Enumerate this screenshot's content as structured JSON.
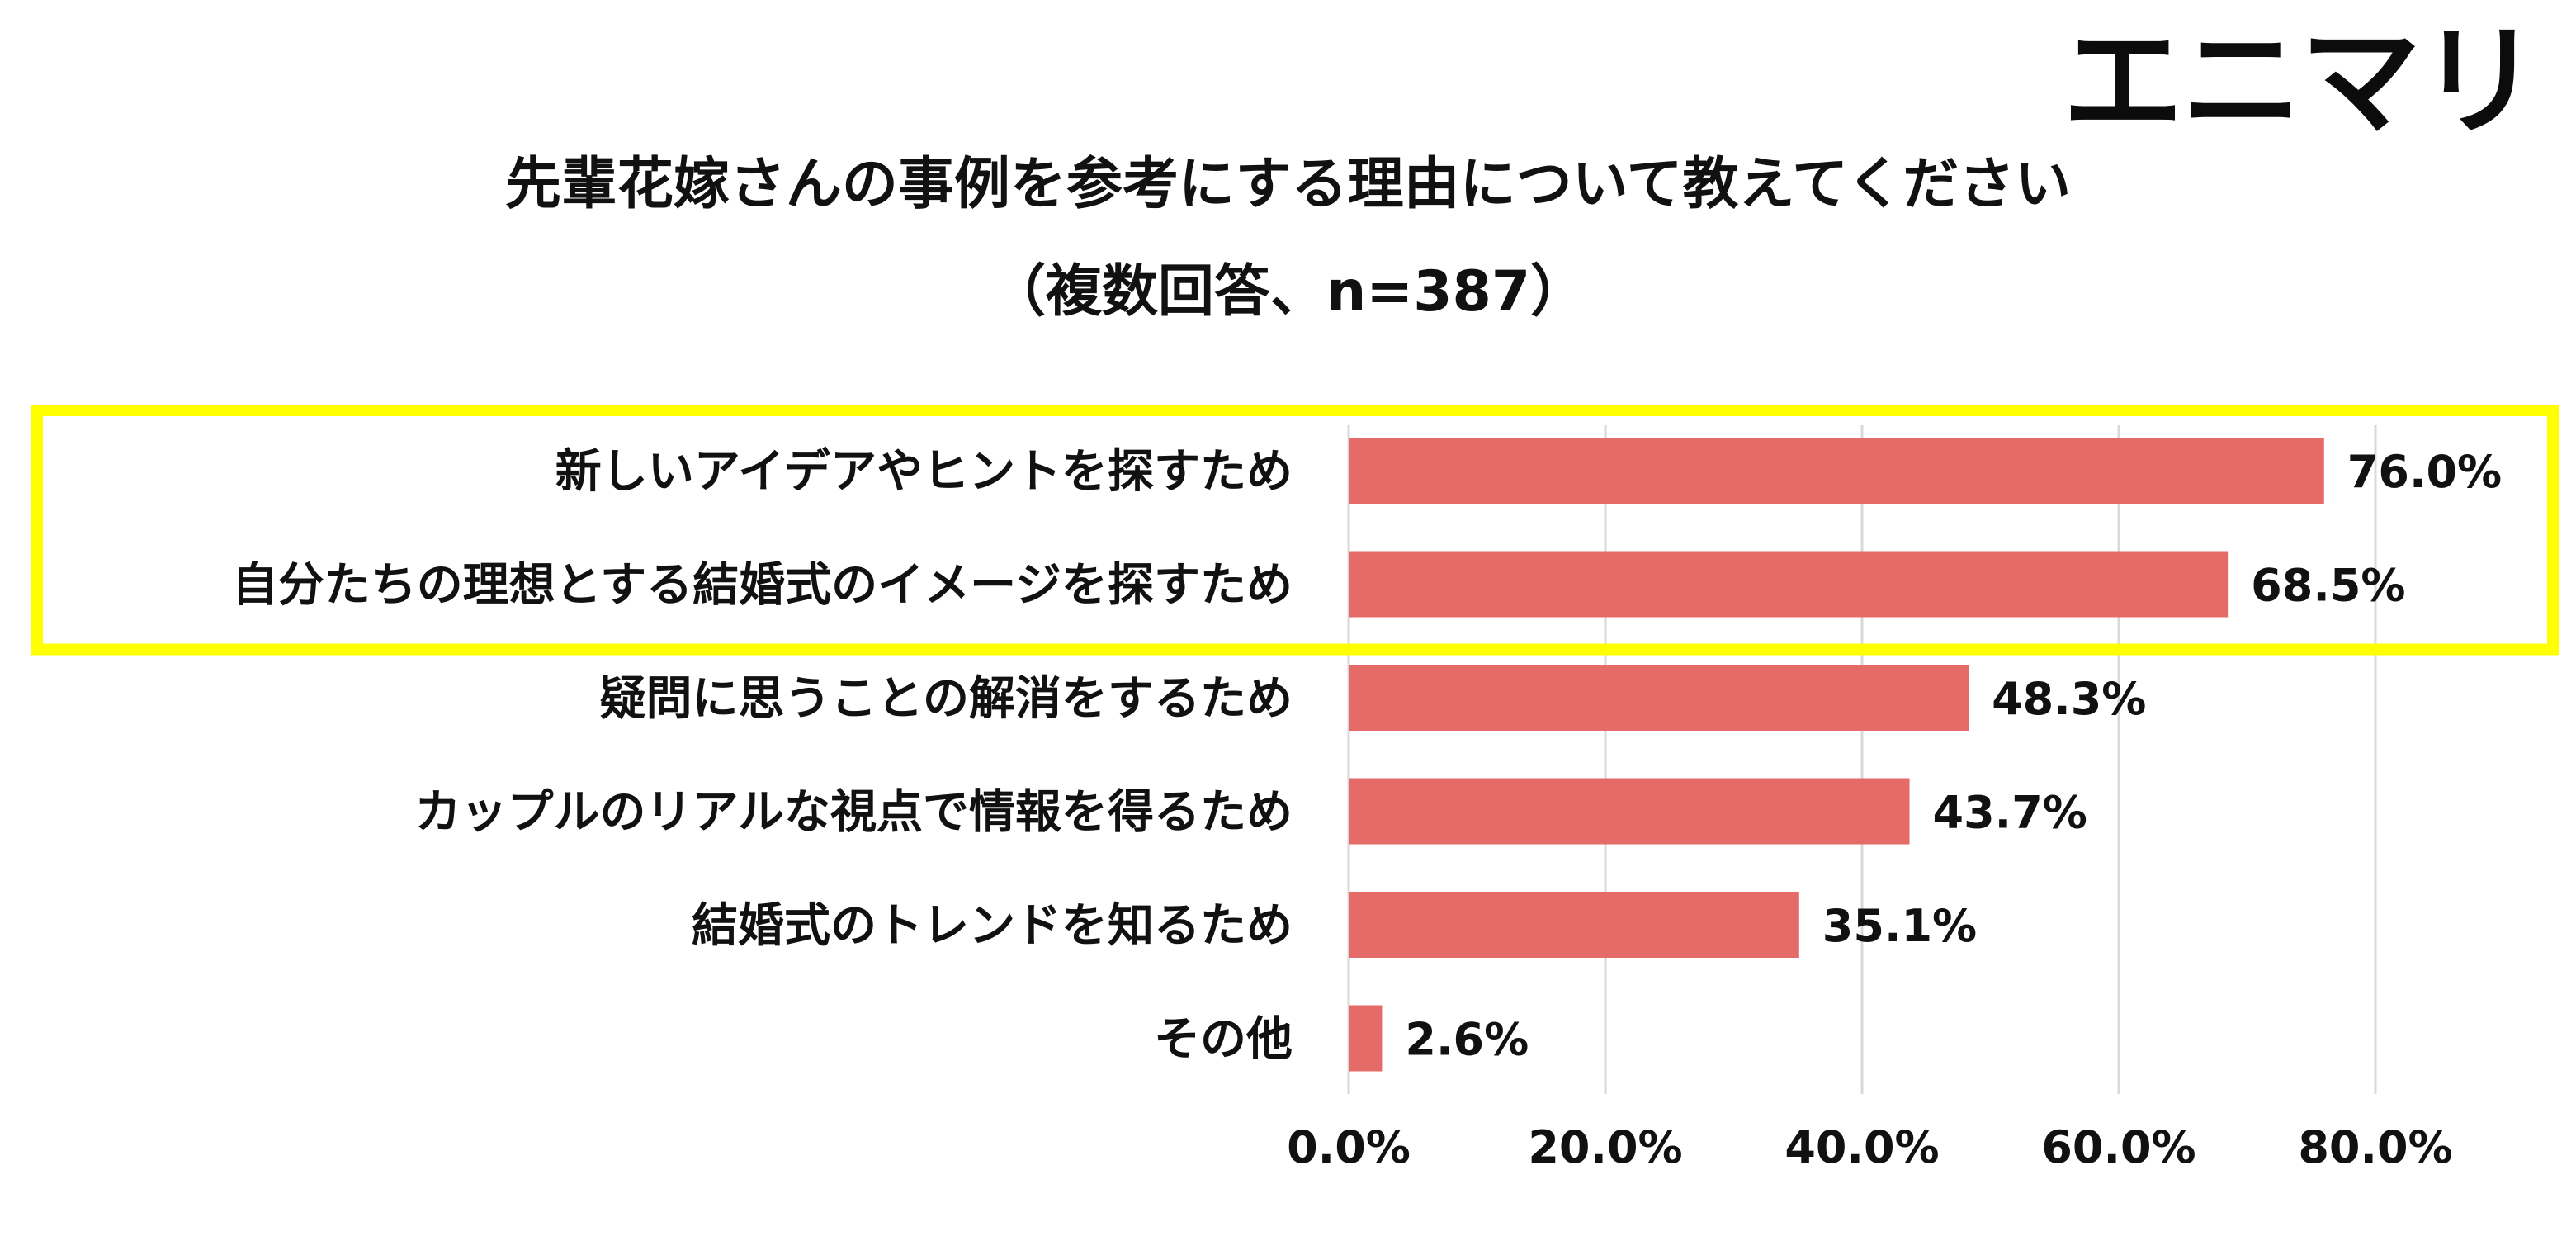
{
  "logo": {
    "text": "エニマリ"
  },
  "title": "先輩花嫁さんの事例を参考にする理由について教えてください",
  "subtitle": "（複数回答、n=387）",
  "colors": {
    "bar": "#e56b69",
    "highlight": "#ffff00",
    "grid": "#d9d9d9",
    "text": "#111111"
  },
  "chart_data": {
    "type": "bar",
    "orientation": "horizontal",
    "categories": [
      "新しいアイデアやヒントを探すため",
      "自分たちの理想とする結婚式のイメージを探すため",
      "疑問に思うことの解消をするため",
      "カップルのリアルな視点で情報を得るため",
      "結婚式のトレンドを知るため",
      "その他"
    ],
    "values": [
      76.0,
      68.5,
      48.3,
      43.7,
      35.1,
      2.6
    ],
    "value_labels": [
      "76.0%",
      "68.5%",
      "48.3%",
      "43.7%",
      "35.1%",
      "2.6%"
    ],
    "xlim": [
      0,
      90
    ],
    "xticks": [
      0,
      20,
      40,
      60,
      80
    ],
    "xtick_labels": [
      "0.0%",
      "20.0%",
      "40.0%",
      "60.0%",
      "80.0%"
    ],
    "grid": true,
    "highlighted_categories": [
      0,
      1
    ],
    "legend": "none"
  }
}
